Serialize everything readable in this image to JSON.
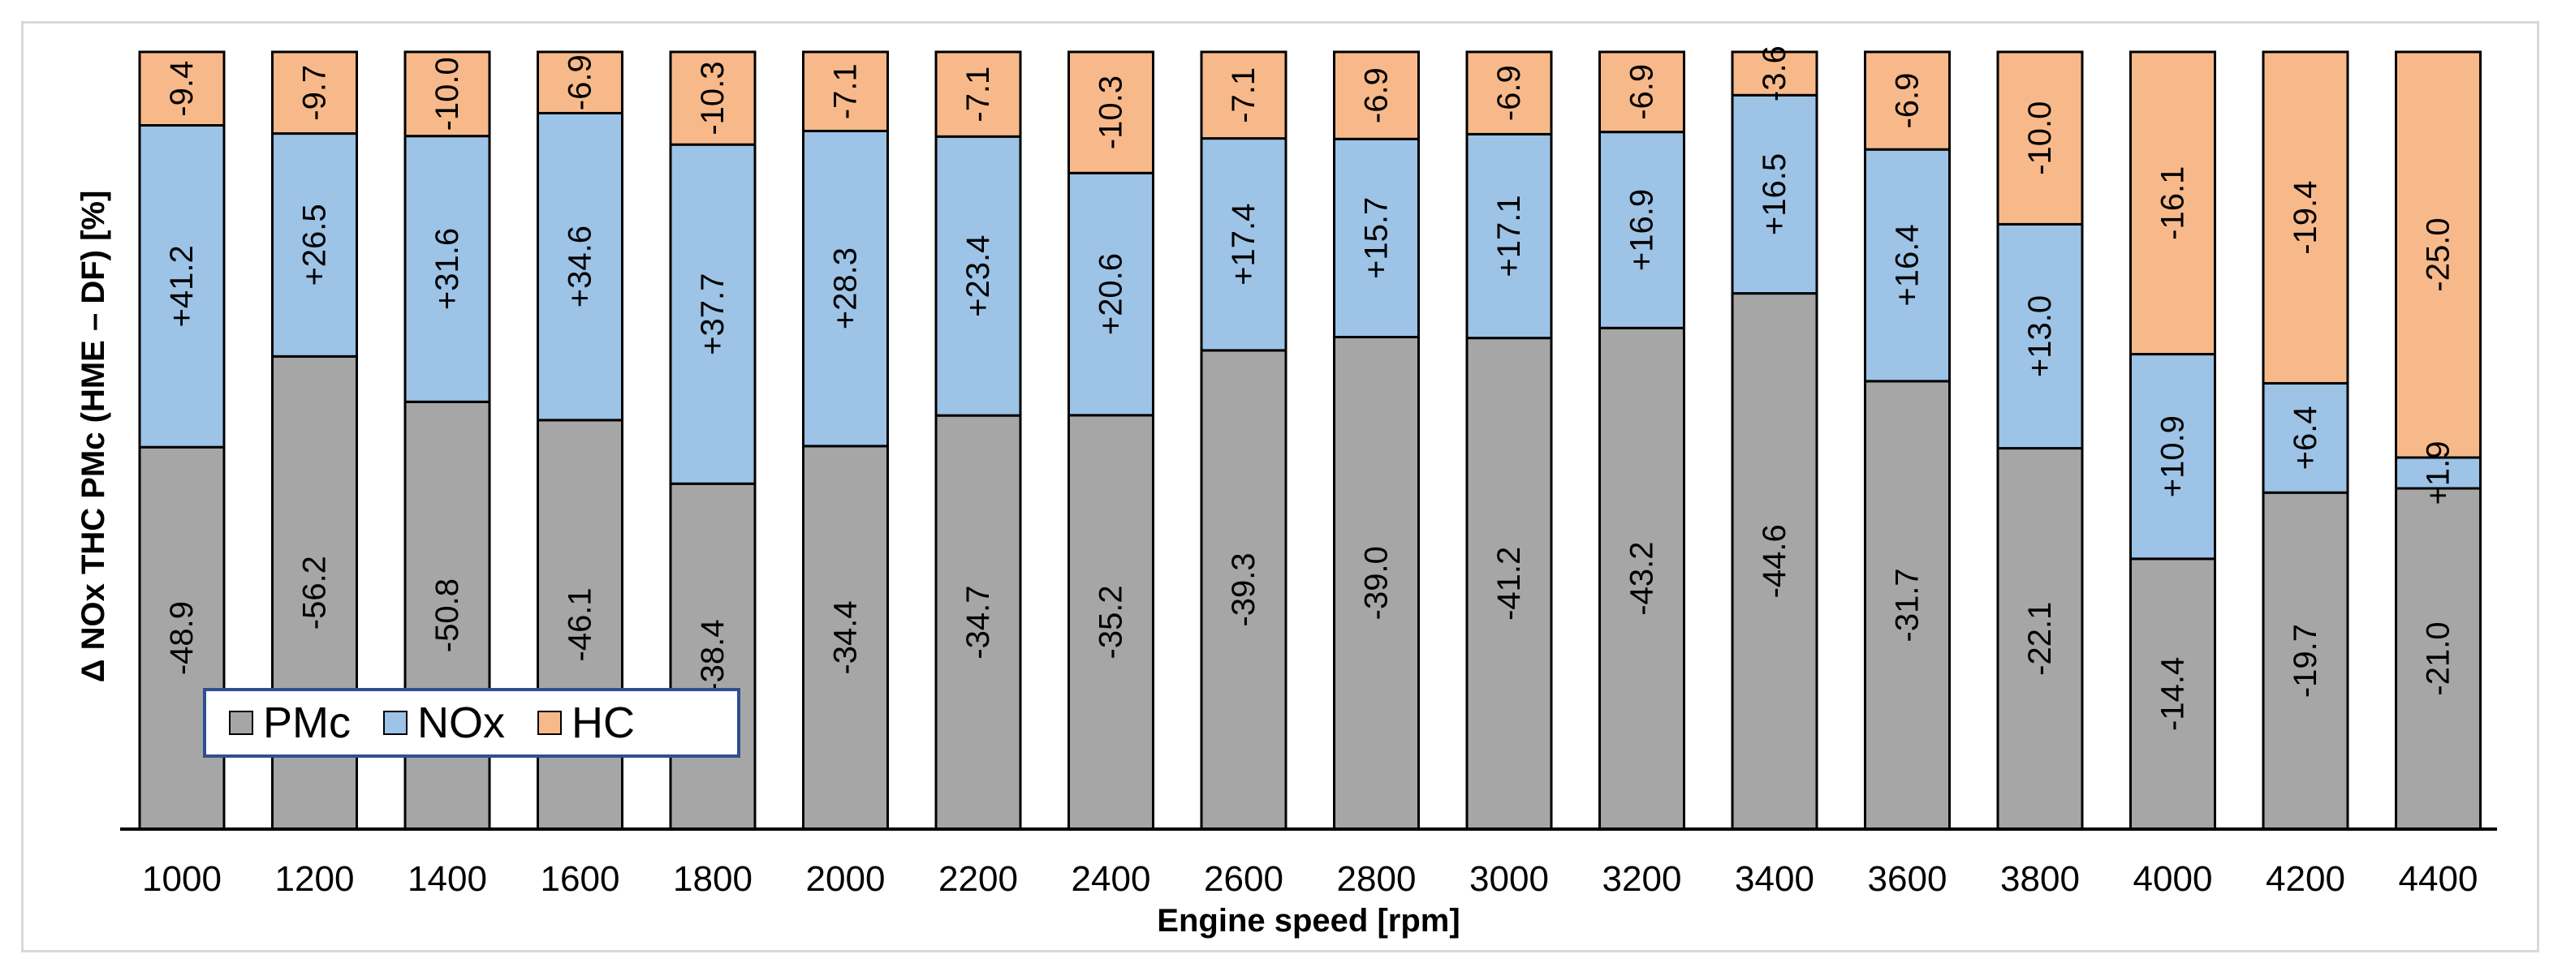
{
  "chart_data": {
    "type": "bar",
    "stacked": true,
    "title": "",
    "xlabel": "Engine speed [rpm]",
    "ylabel": "Δ NOx THC PMc  (HME – DF) [%]",
    "categories": [
      "1000",
      "1200",
      "1400",
      "1600",
      "1800",
      "2000",
      "2200",
      "2400",
      "2600",
      "2800",
      "3000",
      "3200",
      "3400",
      "3600",
      "3800",
      "4000",
      "4200",
      "4400"
    ],
    "series": [
      {
        "name": "PMc",
        "color": "#a6a6a6",
        "values": [
          -48.9,
          -56.2,
          -50.8,
          -46.1,
          -38.4,
          -34.4,
          -34.7,
          -35.2,
          -39.3,
          -39.0,
          -41.2,
          -43.2,
          -44.6,
          -31.7,
          -22.1,
          -14.4,
          -19.7,
          -21.0
        ],
        "labels": [
          "-48.9",
          "-56.2",
          "-50.8",
          "-46.1",
          "-38.4",
          "-34.4",
          "-34.7",
          "-35.2",
          "-39.3",
          "-39.0",
          "-41.2",
          "-43.2",
          "-44.6",
          "-31.7",
          "-22.1",
          "-14.4",
          "-19.7",
          "-21.0"
        ]
      },
      {
        "name": "NOx",
        "color": "#9dc3e6",
        "values": [
          41.2,
          26.5,
          31.6,
          34.6,
          37.7,
          28.3,
          23.4,
          20.6,
          17.4,
          15.7,
          17.1,
          16.9,
          16.5,
          16.4,
          13.0,
          10.9,
          6.4,
          1.9
        ],
        "labels": [
          "+41.2",
          "+26.5",
          "+31.6",
          "+34.6",
          "+37.7",
          "+28.3",
          "+23.4",
          "+20.6",
          "+17.4",
          "+15.7",
          "+17.1",
          "+16.9",
          "+16.5",
          "+16.4",
          "+13.0",
          "+10.9",
          "+6.4",
          "+1.9"
        ]
      },
      {
        "name": "HC",
        "color": "#f8b98a",
        "values": [
          -9.4,
          -9.7,
          -10.0,
          -6.9,
          -10.3,
          -7.1,
          -7.1,
          -10.3,
          -7.1,
          -6.9,
          -6.9,
          -6.9,
          -3.6,
          -6.9,
          -10.0,
          -16.1,
          -19.4,
          -25.0
        ],
        "labels": [
          "-9.4",
          "-9.7",
          "-10.0",
          "-6.9",
          "-10.3",
          "-7.1",
          "-7.1",
          "-10.3",
          "-7.1",
          "-6.9",
          "-6.9",
          "-6.9",
          "-3.6",
          "-6.9",
          "-10.0",
          "-16.1",
          "-19.4",
          "-25.0"
        ]
      }
    ],
    "legend": {
      "labels": [
        "PMc",
        "NOx",
        "HC"
      ],
      "position": "bottom-left"
    },
    "grid": false
  }
}
